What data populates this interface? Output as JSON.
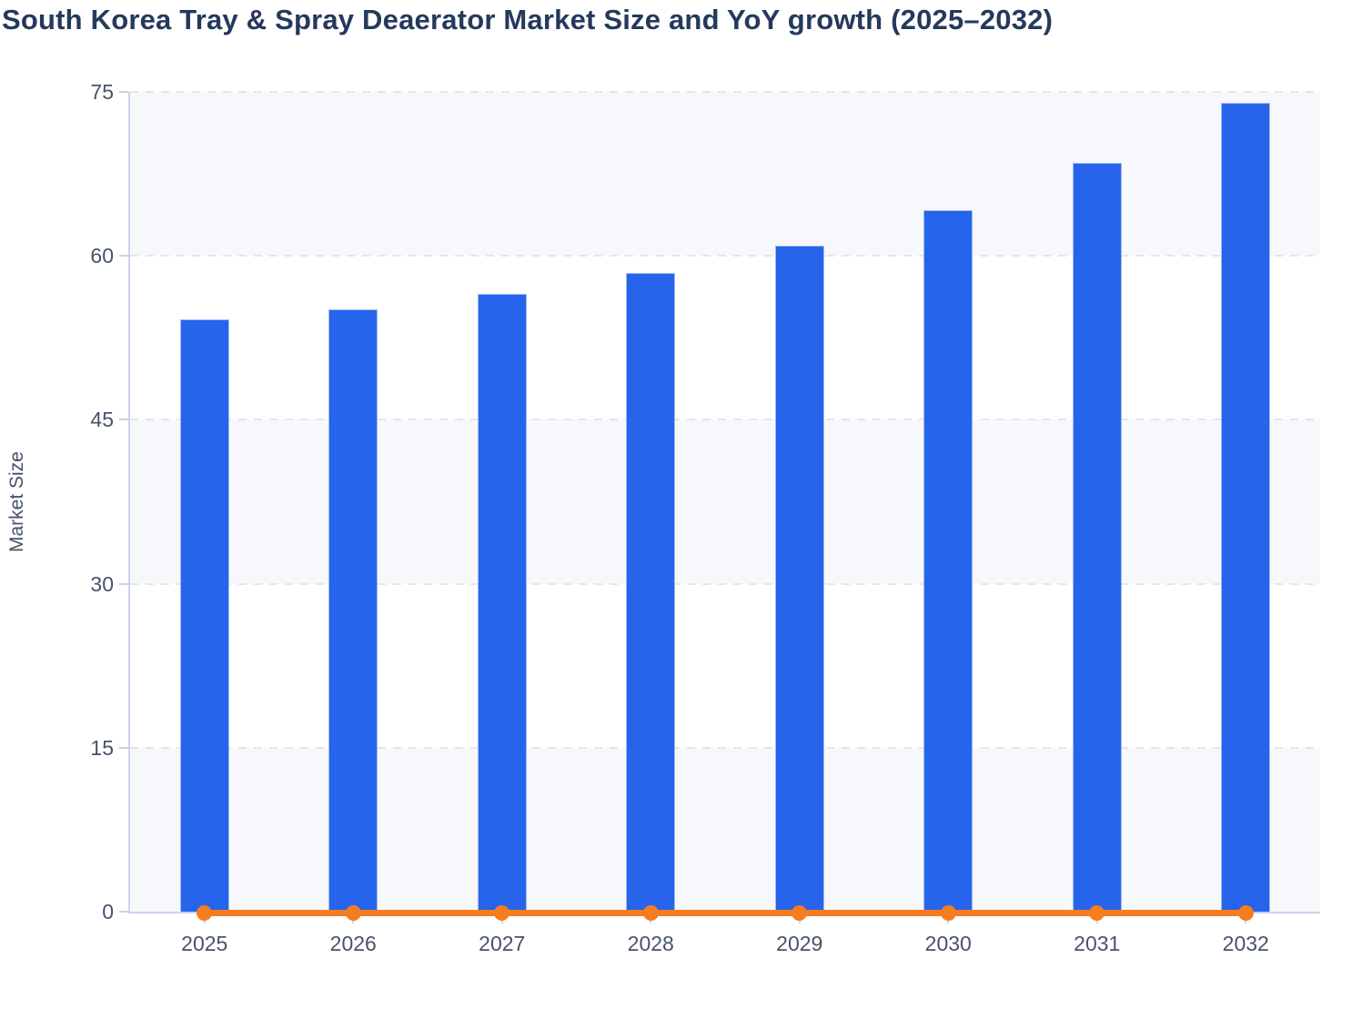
{
  "title": "South Korea Tray & Spray Deaerator Market Size and YoY growth (2025–2032)",
  "y_axis": {
    "title": "Market Size",
    "tick_labels": [
      "0",
      "15",
      "30",
      "45",
      "60",
      "75"
    ]
  },
  "x_axis": {
    "labels": [
      "2025",
      "2026",
      "2027",
      "2028",
      "2029",
      "2030",
      "2031",
      "2032"
    ]
  },
  "colors": {
    "bar": "#2664eb",
    "line": "#f57d1f",
    "band": "#f7f8fb",
    "gridline": "#e3e6ec",
    "axis": "#c9d3ee",
    "title_text": "#24395c",
    "tick_text": "#47526b"
  },
  "chart_data": {
    "type": "bar",
    "categories": [
      "2025",
      "2026",
      "2027",
      "2028",
      "2029",
      "2030",
      "2031",
      "2032"
    ],
    "series": [
      {
        "name": "Market Size",
        "type": "bar",
        "color": "#2664eb",
        "values": [
          54.2,
          55.1,
          56.5,
          58.4,
          60.9,
          64.2,
          68.5,
          74.0
        ]
      },
      {
        "name": "YoY growth",
        "type": "line",
        "color": "#f57d1f",
        "values": [
          0,
          0,
          0,
          0,
          0,
          0,
          0,
          0
        ]
      }
    ],
    "title": "South Korea Tray & Spray Deaerator Market Size and YoY growth (2025–2032)",
    "xlabel": "",
    "ylabel": "Market Size",
    "ylim": [
      0,
      75
    ],
    "yticks": [
      0,
      15,
      30,
      45,
      60,
      75
    ],
    "grid": "horizontal-dashed",
    "band_fill": "alternating-light-from-bottom",
    "legend": "none"
  }
}
